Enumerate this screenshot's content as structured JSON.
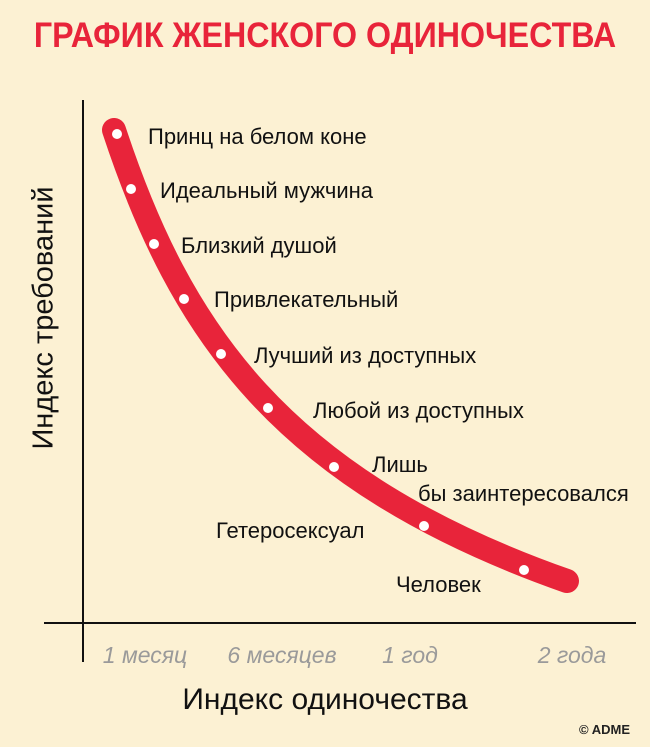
{
  "title": "ГРАФИК ЖЕНСКОГО ОДИНОЧЕСТВА",
  "copyright": "© ADME",
  "colors": {
    "background": "#fcf1d3",
    "accent": "#e8243a",
    "text": "#111111",
    "tick": "#9a9a9a"
  },
  "chart_data": {
    "type": "line",
    "title": "ГРАФИК ЖЕНСКОГО ОДИНОЧЕСТВА",
    "xlabel": "Индекс одиночества",
    "ylabel": "Индекс требований",
    "x_tick_labels": [
      "1 месяц",
      "6 месяцев",
      "1 год",
      "2 года"
    ],
    "grid": false,
    "series": [
      {
        "points": [
          {
            "label": "Принц на белом коне"
          },
          {
            "label": "Идеальный мужчина"
          },
          {
            "label": "Близкий душой"
          },
          {
            "label": "Привлекательный"
          },
          {
            "label": "Лучший из доступных"
          },
          {
            "label": "Любой из доступных"
          },
          {
            "label": "Лишь бы заинтересовался"
          },
          {
            "label": "Гетеросексуал"
          },
          {
            "label": "Человек"
          }
        ]
      }
    ]
  }
}
